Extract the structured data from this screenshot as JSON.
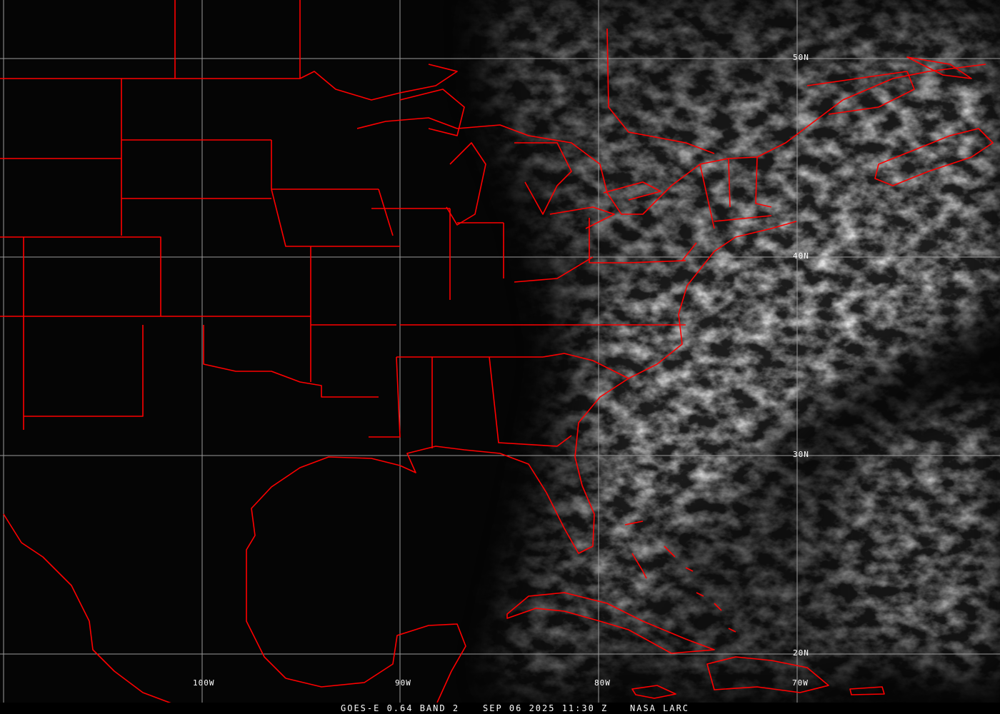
{
  "image": {
    "type": "satellite-visible-imagery",
    "colors": {
      "background": "#000000",
      "borders": "#ff0000",
      "grid": "#9a9a9a",
      "labels": "#ffffff"
    }
  },
  "grid": {
    "longitude_labels": [
      "100W",
      "90W",
      "80W",
      "70W"
    ],
    "latitude_labels": [
      "50N",
      "40N",
      "30N",
      "20N"
    ]
  },
  "caption": {
    "product": "GOES-E 0.64 BAND 2",
    "datetime": "SEP 06 2025 11:30 Z",
    "source": "NASA LARC"
  }
}
